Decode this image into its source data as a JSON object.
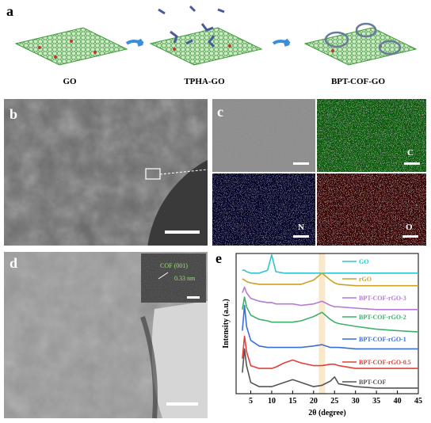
{
  "panels": {
    "a": {
      "label": "a",
      "steps": [
        "GO",
        "TPHA-GO",
        "BPT-COF-GO"
      ]
    },
    "b": {
      "label": "b"
    },
    "c": {
      "label": "c",
      "maps": [
        "C",
        "N",
        "O"
      ]
    },
    "d": {
      "label": "d",
      "inset_text": [
        "COF (001)",
        "0.33 nm"
      ]
    },
    "e": {
      "label": "e"
    }
  },
  "chart_data": {
    "type": "line",
    "xlabel": "2θ (degree)",
    "ylabel": "Intensity (a.u.)",
    "x": [
      3,
      3.5,
      4,
      5,
      7,
      9,
      10,
      11,
      13,
      15,
      17,
      20,
      22,
      24,
      25,
      26,
      30,
      35,
      40,
      45
    ],
    "xlim": [
      1.5,
      45
    ],
    "xticks": [
      5,
      10,
      15,
      20,
      25,
      30,
      35,
      40,
      45
    ],
    "ylim": [
      0,
      100
    ],
    "highlight_x": 22,
    "series": [
      {
        "name": "GO",
        "color": "#2fc4cf",
        "values": [
          88,
          88,
          87,
          86,
          86,
          88,
          99,
          87,
          86,
          86,
          86,
          86,
          86,
          86,
          86,
          86,
          86,
          86,
          86,
          86
        ]
      },
      {
        "name": "rGO",
        "color": "#c9a227",
        "values": [
          82,
          81,
          80,
          79,
          78,
          78,
          78,
          78,
          78,
          78,
          78,
          81,
          86,
          81,
          79,
          78,
          77,
          77,
          77,
          77
        ]
      },
      {
        "name": "BPT-COF-rGO-3",
        "color": "#b57ad6",
        "values": [
          72,
          76,
          72,
          68,
          66,
          65,
          65,
          64,
          64,
          64,
          63,
          64,
          66,
          63,
          62,
          62,
          61,
          60,
          60,
          60
        ]
      },
      {
        "name": "BPT-COF-rGO-2",
        "color": "#3fb06a",
        "values": [
          60,
          69,
          62,
          56,
          53,
          52,
          51,
          51,
          51,
          51,
          52,
          55,
          58,
          53,
          51,
          50,
          48,
          46,
          45,
          44
        ]
      },
      {
        "name": "BPT-COF-rGO-1",
        "color": "#3a6fd8",
        "values": [
          45,
          63,
          48,
          38,
          34,
          33,
          33,
          33,
          33,
          33,
          33,
          34,
          35,
          33,
          33,
          33,
          32,
          32,
          32,
          32
        ]
      },
      {
        "name": "BPT-COF-rGO-0.5",
        "color": "#e0413a",
        "values": [
          25,
          41,
          30,
          20,
          18,
          18,
          18,
          19,
          22,
          24,
          22,
          20,
          20,
          21,
          21,
          20,
          18,
          18,
          18,
          18
        ]
      },
      {
        "name": "BPT-COF",
        "color": "#555555",
        "values": [
          15,
          32,
          20,
          8,
          5,
          5,
          5,
          6,
          8,
          10,
          8,
          5,
          6,
          9,
          12,
          7,
          5,
          4,
          4,
          4
        ]
      }
    ]
  }
}
